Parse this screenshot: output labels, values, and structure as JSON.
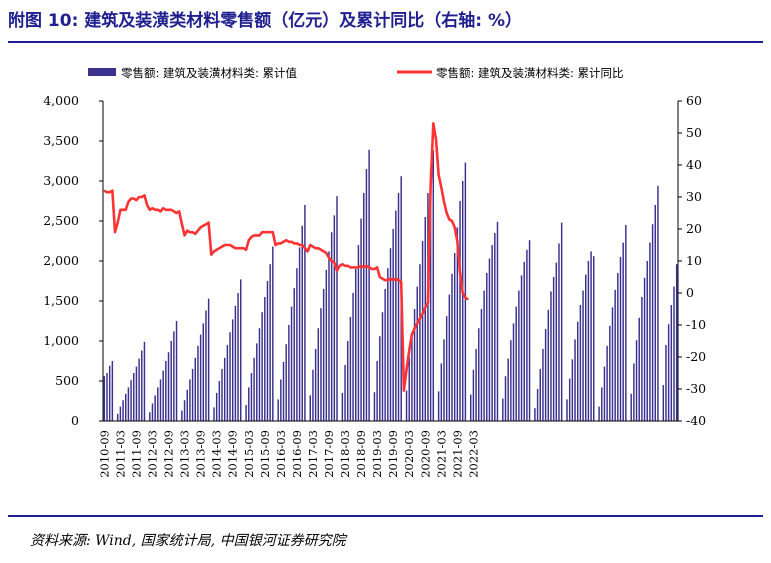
{
  "title": "附图 10: 建筑及装潢类材料零售额（亿元）及累计同比（右轴: %）",
  "source": "资料来源: Wind, 国家统计局, 中国银河证券研究院",
  "chart_data": {
    "type": "bar",
    "legend": {
      "placement": "top",
      "bar_label": "零售额: 建筑及装潢材料类: 累计值",
      "line_label": "零售额: 建筑及装潢材料类: 累计同比"
    },
    "colors": {
      "bar": "#3b3290",
      "line": "#ff3333",
      "title": "#1f1f8f"
    },
    "y_left": {
      "min": 0,
      "max": 4000,
      "ticks": [
        "0",
        "500",
        "1,000",
        "1,500",
        "2,000",
        "2,500",
        "3,000",
        "3,500",
        "4,000"
      ]
    },
    "y_right": {
      "min": -40,
      "max": 60,
      "ticks": [
        "-40",
        "-30",
        "-20",
        "-10",
        "0",
        "10",
        "20",
        "30",
        "40",
        "50",
        "60"
      ]
    },
    "x_start": "2010-09",
    "x_tick_labels": [
      "2010-09",
      "2011-03",
      "2011-09",
      "2012-03",
      "2012-09",
      "2013-03",
      "2013-09",
      "2014-03",
      "2014-09",
      "2015-03",
      "2015-09",
      "2016-03",
      "2016-09",
      "2017-03",
      "2017-09",
      "2018-03",
      "2018-09",
      "2019-03",
      "2019-09",
      "2020-03",
      "2020-09",
      "2021-03",
      "2021-09",
      "2022-03"
    ],
    "bar_values": [
      560,
      600,
      690,
      750,
      0,
      90,
      180,
      260,
      340,
      420,
      510,
      600,
      680,
      780,
      880,
      990,
      0,
      110,
      220,
      320,
      420,
      520,
      630,
      750,
      860,
      1000,
      1120,
      1250,
      0,
      130,
      260,
      390,
      520,
      650,
      790,
      940,
      1080,
      1220,
      1380,
      1530,
      0,
      170,
      350,
      500,
      650,
      790,
      950,
      1110,
      1270,
      1440,
      1600,
      1770,
      0,
      200,
      420,
      600,
      790,
      970,
      1160,
      1360,
      1550,
      1750,
      1960,
      2180,
      0,
      270,
      520,
      740,
      960,
      1200,
      1430,
      1660,
      1910,
      2170,
      2440,
      2700,
      0,
      320,
      640,
      900,
      1160,
      1410,
      1650,
      1890,
      2120,
      2360,
      2570,
      2810,
      0,
      350,
      700,
      1000,
      1300,
      1600,
      1900,
      2200,
      2530,
      2850,
      3150,
      3390,
      0,
      360,
      750,
      1060,
      1360,
      1650,
      1910,
      2160,
      2400,
      2630,
      2850,
      3060,
      0,
      380,
      800,
      1110,
      1400,
      1680,
      1960,
      2250,
      2550,
      2850,
      3150,
      3380,
      0,
      370,
      720,
      1020,
      1310,
      1580,
      1840,
      2100,
      2420,
      2750,
      3000,
      3230,
      0,
      330,
      640,
      900,
      1160,
      1400,
      1630,
      1850,
      2030,
      2200,
      2350,
      2490,
      0,
      280,
      560,
      780,
      1010,
      1220,
      1430,
      1630,
      1820,
      1990,
      2140,
      2260,
      0,
      160,
      400,
      650,
      900,
      1150,
      1390,
      1620,
      1800,
      1980,
      2220,
      2480,
      0,
      270,
      530,
      770,
      1020,
      1240,
      1450,
      1630,
      1830,
      2000,
      2120,
      2060,
      0,
      180,
      420,
      680,
      940,
      1190,
      1420,
      1640,
      1850,
      2050,
      2230,
      2450,
      0,
      340,
      720,
      1010,
      1290,
      1550,
      1790,
      2000,
      2230,
      2460,
      2700,
      2940,
      0,
      450,
      950,
      1210,
      1450,
      1680,
      1960
    ],
    "line_values": [
      32,
      31.5,
      31.5,
      32,
      19,
      22,
      26,
      26,
      26,
      28.5,
      29.5,
      29.5,
      29,
      30,
      30,
      30.5,
      27.5,
      26,
      26.5,
      26,
      26,
      25.5,
      26.5,
      26,
      26,
      26,
      25.5,
      25,
      25.5,
      21.5,
      18,
      19.5,
      19,
      19,
      18.5,
      19.5,
      20.5,
      21,
      21.5,
      22,
      12,
      13,
      13.5,
      14,
      14.5,
      15,
      15,
      15,
      14.5,
      14,
      14,
      14,
      14,
      13.5,
      16.5,
      17.5,
      18,
      18,
      18,
      19,
      19,
      19,
      19,
      19,
      15,
      15.5,
      15.5,
      16,
      16.5,
      16,
      16,
      15.5,
      15.5,
      15,
      15,
      14,
      13,
      15,
      14.5,
      14,
      14,
      13.5,
      13,
      12.5,
      11,
      10,
      9.5,
      7,
      8.5,
      9,
      8.5,
      8.5,
      8,
      8,
      8,
      8,
      8.5,
      8,
      8.5,
      8,
      7.5,
      7.5,
      8,
      5,
      4.5,
      4,
      4,
      4.5,
      4,
      4.5,
      4,
      3.5,
      -30.5,
      -24,
      -18,
      -13,
      -11,
      -9.5,
      -8,
      -6.5,
      -4.5,
      -3,
      33,
      53,
      48,
      37,
      33,
      28.5,
      25,
      23,
      22.5,
      20.5,
      16,
      6.5,
      0,
      -1.5,
      -2
    ]
  }
}
